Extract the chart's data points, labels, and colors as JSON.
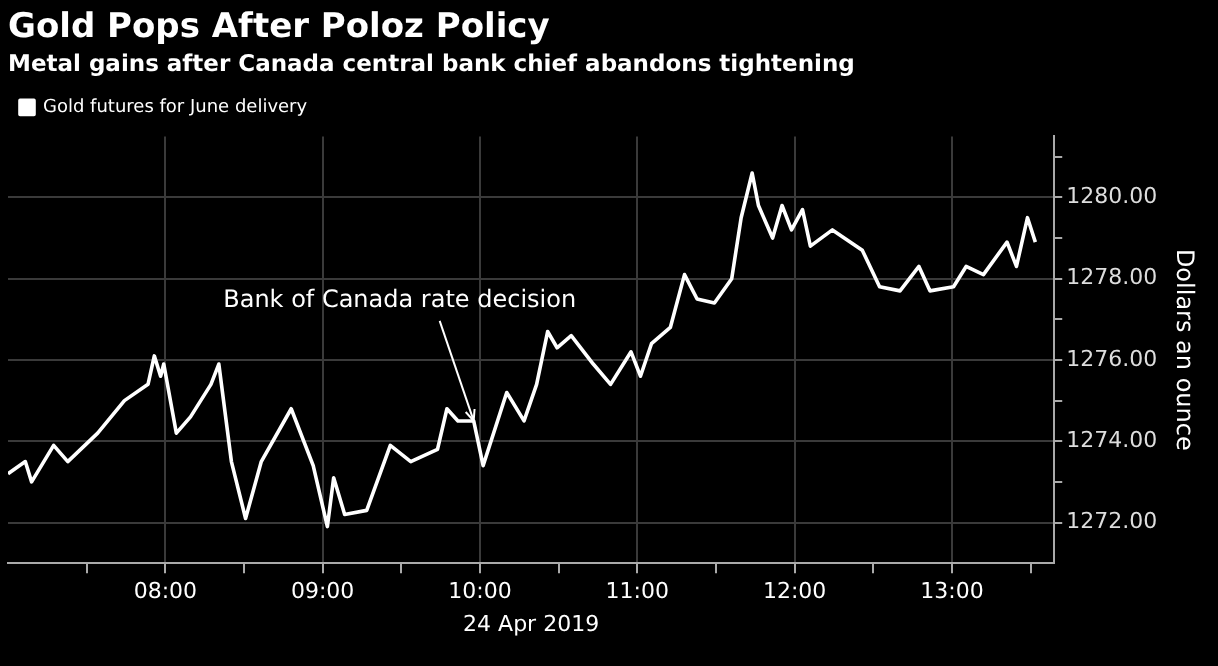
{
  "chart_data": {
    "type": "line",
    "title": "Gold Pops After Poloz Policy",
    "subtitle": "Metal gains after Canada central bank chief abandons tightening",
    "xlabel": "24 Apr 2019",
    "ylabel": "Dollars an ounce",
    "series": [
      {
        "name": "Gold futures for June delivery",
        "color": "#ffffff",
        "x": [
          7.0,
          7.11,
          7.15,
          7.29,
          7.38,
          7.57,
          7.74,
          7.89,
          7.93,
          7.97,
          7.99,
          8.07,
          8.16,
          8.29,
          8.34,
          8.42,
          8.51,
          8.61,
          8.8,
          8.94,
          9.03,
          9.07,
          9.14,
          9.28,
          9.43,
          9.56,
          9.73,
          9.79,
          9.86,
          9.96,
          10.02,
          10.17,
          10.28,
          10.36,
          10.43,
          10.49,
          10.58,
          10.72,
          10.83,
          10.96,
          11.02,
          11.09,
          11.21,
          11.3,
          11.38,
          11.49,
          11.6,
          11.66,
          11.73,
          11.77,
          11.86,
          11.92,
          11.98,
          12.05,
          12.1,
          12.24,
          12.43,
          12.54,
          12.67,
          12.79,
          12.86,
          13.01,
          13.09,
          13.2,
          13.35,
          13.41,
          13.48,
          13.53
        ],
        "values": [
          1273.2,
          1273.5,
          1273.0,
          1273.9,
          1273.5,
          1274.2,
          1275.0,
          1275.4,
          1276.1,
          1275.6,
          1275.9,
          1274.2,
          1274.6,
          1275.4,
          1275.9,
          1273.5,
          1272.1,
          1273.5,
          1274.8,
          1273.4,
          1271.9,
          1273.1,
          1272.2,
          1272.3,
          1273.9,
          1273.5,
          1273.8,
          1274.8,
          1274.5,
          1274.5,
          1273.4,
          1275.2,
          1274.5,
          1275.4,
          1276.7,
          1276.3,
          1276.6,
          1275.9,
          1275.4,
          1276.2,
          1275.6,
          1276.4,
          1276.8,
          1278.1,
          1277.5,
          1277.4,
          1278.0,
          1279.5,
          1280.6,
          1279.8,
          1279.0,
          1279.8,
          1279.2,
          1279.7,
          1278.8,
          1279.2,
          1278.7,
          1277.8,
          1277.7,
          1278.3,
          1277.7,
          1277.8,
          1278.3,
          1278.1,
          1278.9,
          1278.3,
          1279.5,
          1278.9
        ]
      }
    ],
    "xlim": [
      7,
      13.65
    ],
    "xticks": [
      {
        "value": 7.5,
        "label": null
      },
      {
        "value": 8,
        "label": "08:00"
      },
      {
        "value": 8.5,
        "label": null
      },
      {
        "value": 9,
        "label": "09:00"
      },
      {
        "value": 9.5,
        "label": null
      },
      {
        "value": 10,
        "label": "10:00"
      },
      {
        "value": 10.5,
        "label": null
      },
      {
        "value": 11,
        "label": "11:00"
      },
      {
        "value": 11.5,
        "label": null
      },
      {
        "value": 12,
        "label": "12:00"
      },
      {
        "value": 12.5,
        "label": null
      },
      {
        "value": 13,
        "label": "13:00"
      },
      {
        "value": 13.5,
        "label": null
      }
    ],
    "ylim": [
      1271,
      1281.5
    ],
    "yticks": [
      {
        "value": 1272,
        "label": "1272.00"
      },
      {
        "value": 1273,
        "label": null
      },
      {
        "value": 1274,
        "label": "1274.00"
      },
      {
        "value": 1275,
        "label": null
      },
      {
        "value": 1276,
        "label": "1276.00"
      },
      {
        "value": 1277,
        "label": null
      },
      {
        "value": 1278,
        "label": "1278.00"
      },
      {
        "value": 1279,
        "label": null
      },
      {
        "value": 1280,
        "label": "1280.00"
      },
      {
        "value": 1281,
        "label": null
      }
    ],
    "annotations": [
      {
        "text": "Bank of Canada rate decision",
        "x": 9.96,
        "y": 1274.5
      }
    ],
    "grid": true,
    "legend": "top left",
    "marker": "none",
    "line_style": "solid"
  }
}
